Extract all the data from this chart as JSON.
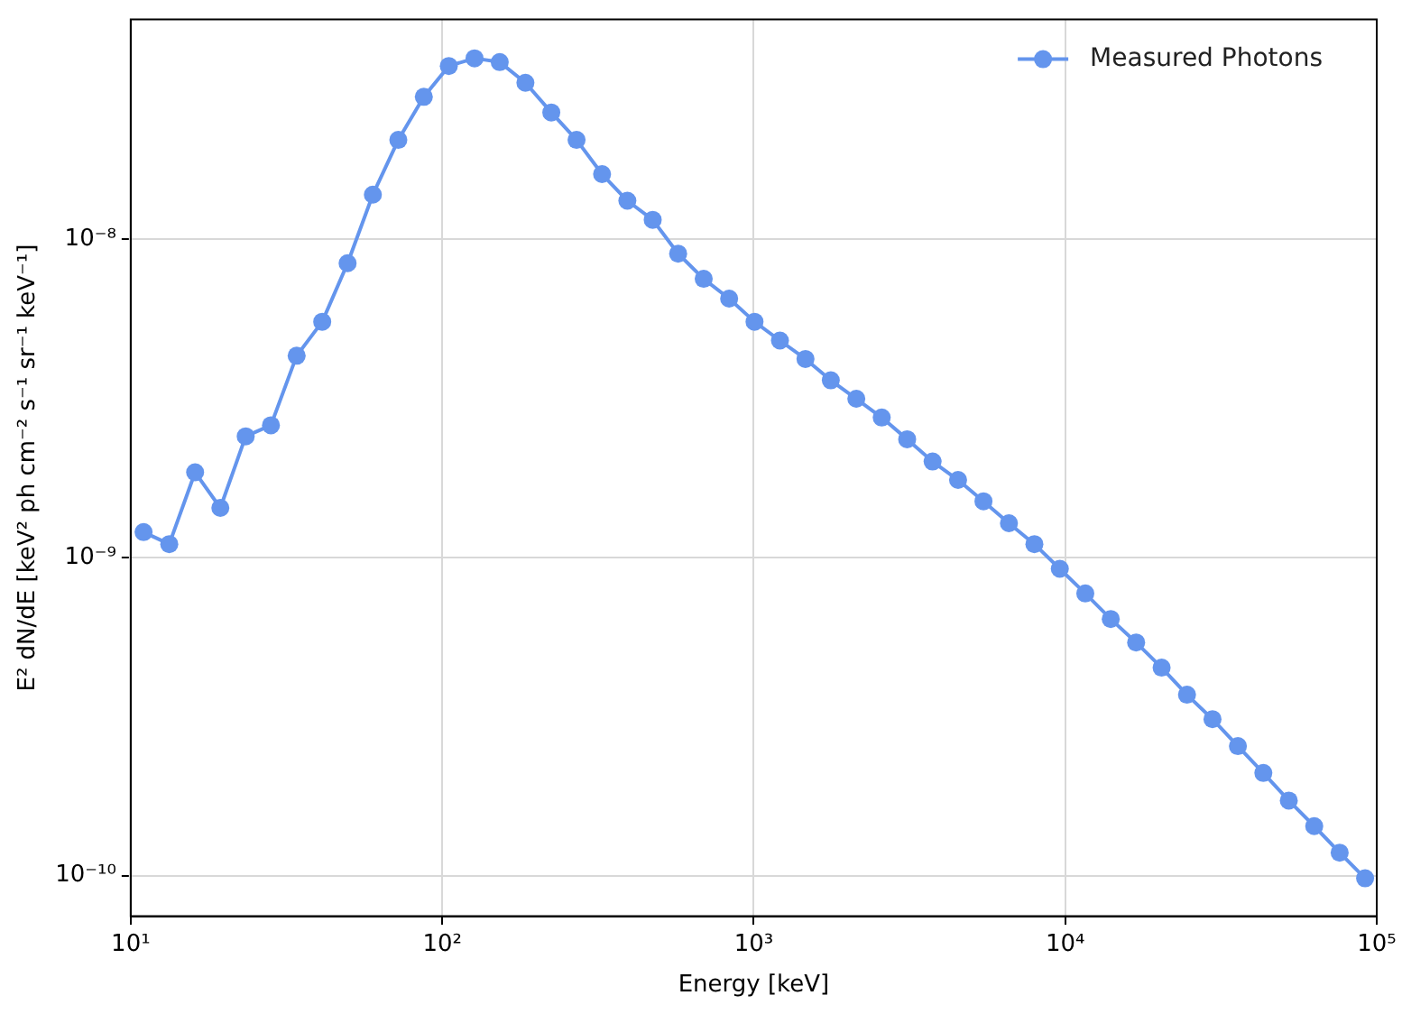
{
  "chart_data": {
    "type": "line",
    "xlabel": "Energy [keV]",
    "ylabel": "E² dN/dE [keV² ph cm⁻² s⁻¹ sr⁻¹ keV⁻¹]",
    "x": [
      11.0,
      13.3,
      16.1,
      19.4,
      23.4,
      28.2,
      34.1,
      41.2,
      49.7,
      59.9,
      72.3,
      87.3,
      105,
      127,
      153,
      185,
      224,
      270,
      326,
      393,
      474,
      572,
      691,
      834,
      1006,
      1214,
      1466,
      1768,
      2135,
      2576,
      3109,
      3752,
      4529,
      5465,
      6597,
      7962,
      9608,
      11600,
      14000,
      16890,
      20390,
      24600,
      29700,
      35840,
      43250,
      52200,
      63000,
      76030,
      91760
    ],
    "series": [
      {
        "name": "Measured Photons",
        "color": "#6495ed",
        "values": [
          1.2e-09,
          1.1e-09,
          1.85e-09,
          1.43e-09,
          2.4e-09,
          2.6e-09,
          4.3e-09,
          5.5e-09,
          8.4e-09,
          1.38e-08,
          2.05e-08,
          2.8e-08,
          3.5e-08,
          3.7e-08,
          3.6e-08,
          3.1e-08,
          2.5e-08,
          2.05e-08,
          1.6e-08,
          1.32e-08,
          1.15e-08,
          9e-09,
          7.5e-09,
          6.5e-09,
          5.5e-09,
          4.8e-09,
          4.2e-09,
          3.6e-09,
          3.15e-09,
          2.75e-09,
          2.35e-09,
          2e-09,
          1.75e-09,
          1.5e-09,
          1.28e-09,
          1.1e-09,
          9.2e-10,
          7.7e-10,
          6.4e-10,
          5.4e-10,
          4.5e-10,
          3.7e-10,
          3.1e-10,
          2.55e-10,
          2.1e-10,
          1.72e-10,
          1.43e-10,
          1.18e-10,
          9.8e-11
        ]
      }
    ],
    "log": "xy",
    "xlim": [
      10,
      100000
    ],
    "ylim": [
      7.45e-11,
      4.9e-08
    ],
    "xticks": [
      {
        "value": 10,
        "label": "10¹"
      },
      {
        "value": 100,
        "label": "10²"
      },
      {
        "value": 1000,
        "label": "10³"
      },
      {
        "value": 10000,
        "label": "10⁴"
      },
      {
        "value": 100000,
        "label": "10⁵"
      }
    ],
    "yticks": [
      {
        "value": 1e-10,
        "label": "10⁻¹⁰"
      },
      {
        "value": 1e-09,
        "label": "10⁻⁹"
      },
      {
        "value": 1e-08,
        "label": "10⁻⁸"
      }
    ],
    "grid": true,
    "legend": "top right",
    "marker": "circle",
    "line_style": "solid"
  }
}
